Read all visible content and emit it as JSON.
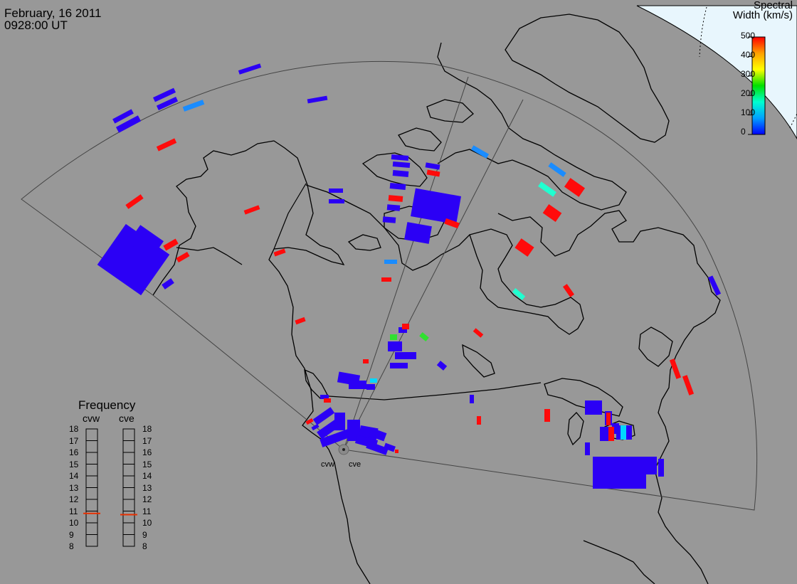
{
  "header": {
    "date": "February, 16 2011",
    "time": "0928:00 UT"
  },
  "colorbar": {
    "title_line1": "Spectral",
    "title_line2": "Width (km/s)",
    "ticks": [
      "500",
      "400",
      "300",
      "200",
      "100",
      "0"
    ],
    "colors": [
      "#0000ff",
      "#00a0ff",
      "#00ffd0",
      "#00e000",
      "#ffff00",
      "#ffa000",
      "#ff0000"
    ]
  },
  "radars": [
    {
      "name": "cvw",
      "frequency_mhz": 10.8
    },
    {
      "name": "cve",
      "frequency_mhz": 10.7
    }
  ],
  "frequency_panel": {
    "title": "Frequency",
    "ticks": [
      "18",
      "17",
      "16",
      "15",
      "14",
      "13",
      "12",
      "11",
      "10",
      "9",
      "8"
    ],
    "range": [
      8,
      18
    ]
  }
}
